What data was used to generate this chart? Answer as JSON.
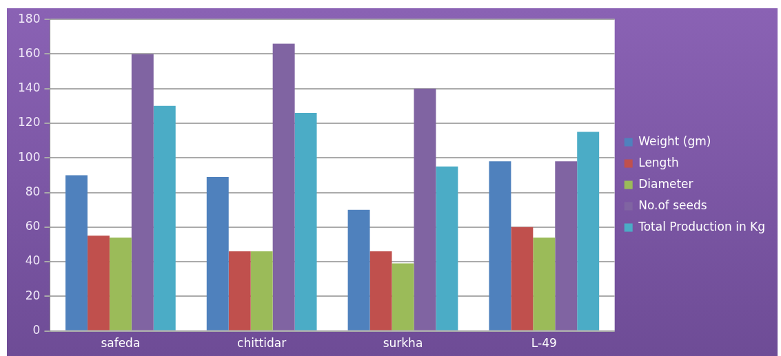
{
  "chart_data": {
    "type": "bar",
    "categories": [
      "safeda",
      "chittidar",
      "surkha",
      "L-49"
    ],
    "series": [
      {
        "name": "Weight (gm)",
        "color": "#4f81bd",
        "values": [
          90,
          89,
          70,
          98
        ]
      },
      {
        "name": "Length",
        "color": "#c0504d",
        "values": [
          55,
          46,
          46,
          60
        ]
      },
      {
        "name": "Diameter",
        "color": "#9bbb59",
        "values": [
          54,
          46,
          39,
          54
        ]
      },
      {
        "name": "No.of seeds",
        "color": "#8064a2",
        "values": [
          160,
          166,
          140,
          98
        ]
      },
      {
        "name": "Total Production in Kg",
        "color": "#4bacc6",
        "values": [
          130,
          126,
          95,
          115
        ]
      }
    ],
    "ylim": [
      0,
      180
    ],
    "yticks": [
      0,
      20,
      40,
      60,
      80,
      100,
      120,
      140,
      160,
      180
    ],
    "grid": "y",
    "legend": "right"
  }
}
